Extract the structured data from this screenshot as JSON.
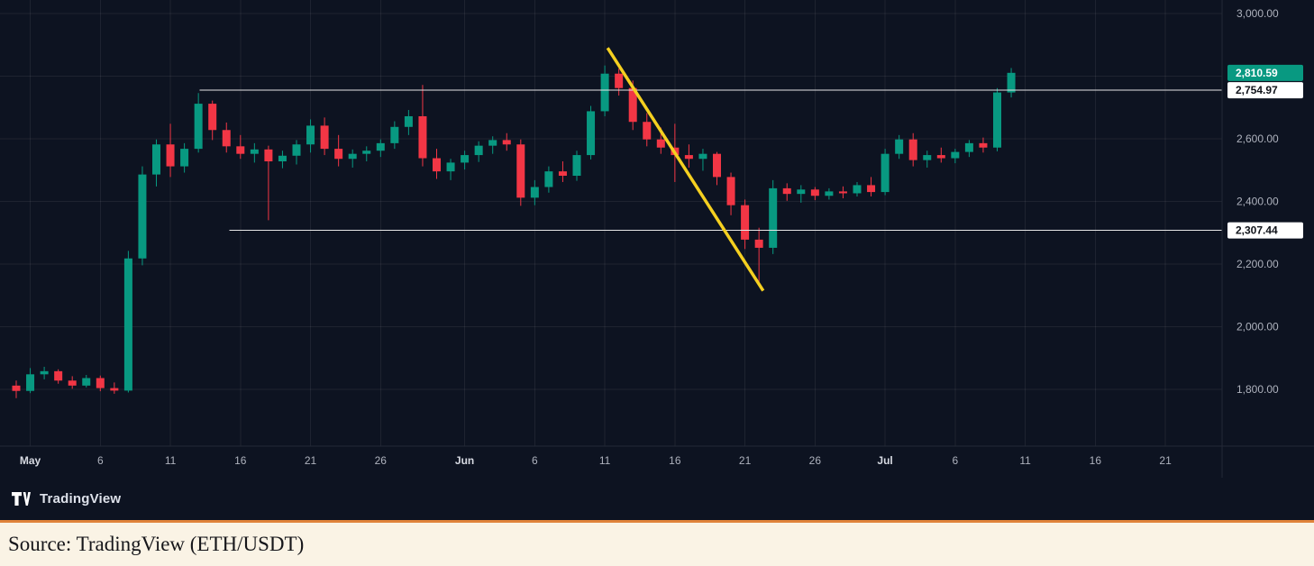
{
  "colors": {
    "background": "#0d1321",
    "up": "#089981",
    "down": "#f23645",
    "grid": "rgba(255,255,255,0.07)",
    "axis_text": "#aeb2bd",
    "axis_text_major": "#d7dae2",
    "separator": "#232836",
    "level_line": "#e6e6e6",
    "trend_yellow": "#f5d020",
    "badge_last_bg": "#089981",
    "badge_last_text": "#ffffff",
    "badge_level_bg": "#ffffff",
    "badge_level_text": "#10131a",
    "footer_bg": "#faf3e5",
    "footer_border": "#e0833a",
    "footer_text": "#16161a"
  },
  "watermark": {
    "brand": "TradingView"
  },
  "footer": {
    "source_text": "Source: TradingView (ETH/USDT)"
  },
  "chart_data": {
    "type": "candlestick",
    "symbol": "ETH/USDT",
    "interval": "1D",
    "grid": true,
    "visible_price_range": [
      1620,
      3043
    ],
    "columns": [
      "date",
      "open",
      "high",
      "low",
      "close"
    ],
    "price_axis": [
      {
        "label": "3,000.00",
        "value": 3000
      },
      {
        "label": "2,600.00",
        "value": 2600
      },
      {
        "label": "2,400.00",
        "value": 2400
      },
      {
        "label": "2,200.00",
        "value": 2200
      },
      {
        "label": "2,000.00",
        "value": 2000
      },
      {
        "label": "1,800.00",
        "value": 1800
      }
    ],
    "grid_prices": [
      3000,
      2800,
      2600,
      2400,
      2200,
      2000,
      1800
    ],
    "time_ticks": [
      {
        "label": "May",
        "day": 1,
        "major": true
      },
      {
        "label": "6",
        "day": 6,
        "major": false
      },
      {
        "label": "11",
        "day": 11,
        "major": false
      },
      {
        "label": "16",
        "day": 16,
        "major": false
      },
      {
        "label": "21",
        "day": 21,
        "major": false
      },
      {
        "label": "26",
        "day": 26,
        "major": false
      },
      {
        "label": "Jun",
        "day": 32,
        "major": true
      },
      {
        "label": "6",
        "day": 37,
        "major": false
      },
      {
        "label": "11",
        "day": 42,
        "major": false
      },
      {
        "label": "16",
        "day": 47,
        "major": false
      },
      {
        "label": "21",
        "day": 52,
        "major": false
      },
      {
        "label": "26",
        "day": 57,
        "major": false
      },
      {
        "label": "Jul",
        "day": 62,
        "major": true
      },
      {
        "label": "6",
        "day": 67,
        "major": false
      },
      {
        "label": "11",
        "day": 72,
        "major": false
      },
      {
        "label": "16",
        "day": 77,
        "major": false
      },
      {
        "label": "21",
        "day": 82,
        "major": false
      }
    ],
    "last_price_badge": {
      "label": "2,810.59",
      "value": 2810.59
    },
    "level_badges": [
      {
        "label": "2,754.97",
        "value": 2754.97
      },
      {
        "label": "2,307.44",
        "value": 2307.44
      }
    ],
    "horizontal_lines": [
      {
        "price": 2754.97,
        "start_day": 13.1
      },
      {
        "price": 2307.44,
        "start_day": 15.2
      }
    ],
    "trend_line": {
      "from_day": 42.2,
      "from_price": 2890,
      "to_day": 53.3,
      "to_price": 2115
    },
    "candles": [
      [
        "Apr 30",
        1812,
        1828,
        1772,
        1795
      ],
      [
        "May 1",
        1795,
        1868,
        1788,
        1848
      ],
      [
        "May 2",
        1848,
        1872,
        1832,
        1858
      ],
      [
        "May 3",
        1858,
        1864,
        1818,
        1828
      ],
      [
        "May 4",
        1828,
        1842,
        1802,
        1812
      ],
      [
        "May 5",
        1812,
        1846,
        1806,
        1836
      ],
      [
        "May 6",
        1836,
        1844,
        1794,
        1804
      ],
      [
        "May 7",
        1804,
        1822,
        1786,
        1796
      ],
      [
        "May 8",
        1796,
        2242,
        1790,
        2218
      ],
      [
        "May 9",
        2218,
        2512,
        2196,
        2486
      ],
      [
        "May 10",
        2486,
        2598,
        2448,
        2582
      ],
      [
        "May 11",
        2582,
        2648,
        2478,
        2512
      ],
      [
        "May 12",
        2512,
        2586,
        2492,
        2568
      ],
      [
        "May 13",
        2568,
        2746,
        2556,
        2712
      ],
      [
        "May 14",
        2712,
        2722,
        2596,
        2628
      ],
      [
        "May 15",
        2628,
        2652,
        2556,
        2576
      ],
      [
        "May 16",
        2576,
        2612,
        2536,
        2552
      ],
      [
        "May 17",
        2552,
        2586,
        2524,
        2566
      ],
      [
        "May 18",
        2566,
        2578,
        2340,
        2528
      ],
      [
        "May 19",
        2528,
        2562,
        2506,
        2546
      ],
      [
        "May 20",
        2546,
        2596,
        2518,
        2582
      ],
      [
        "May 21",
        2582,
        2662,
        2556,
        2642
      ],
      [
        "May 22",
        2642,
        2668,
        2548,
        2568
      ],
      [
        "May 23",
        2568,
        2612,
        2512,
        2536
      ],
      [
        "May 24",
        2536,
        2566,
        2508,
        2552
      ],
      [
        "May 25",
        2552,
        2576,
        2528,
        2562
      ],
      [
        "May 26",
        2562,
        2598,
        2542,
        2586
      ],
      [
        "May 27",
        2586,
        2656,
        2568,
        2638
      ],
      [
        "May 28",
        2638,
        2692,
        2612,
        2672
      ],
      [
        "May 29",
        2672,
        2772,
        2512,
        2538
      ],
      [
        "May 30",
        2538,
        2568,
        2472,
        2496
      ],
      [
        "May 31",
        2496,
        2536,
        2468,
        2524
      ],
      [
        "Jun 1",
        2524,
        2562,
        2502,
        2548
      ],
      [
        "Jun 2",
        2548,
        2592,
        2526,
        2578
      ],
      [
        "Jun 3",
        2578,
        2608,
        2552,
        2596
      ],
      [
        "Jun 4",
        2596,
        2618,
        2562,
        2582
      ],
      [
        "Jun 5",
        2582,
        2598,
        2386,
        2412
      ],
      [
        "Jun 6",
        2412,
        2468,
        2388,
        2446
      ],
      [
        "Jun 7",
        2446,
        2512,
        2428,
        2496
      ],
      [
        "Jun 8",
        2496,
        2528,
        2462,
        2482
      ],
      [
        "Jun 9",
        2482,
        2562,
        2466,
        2548
      ],
      [
        "Jun 10",
        2548,
        2705,
        2534,
        2688
      ],
      [
        "Jun 11",
        2688,
        2834,
        2672,
        2808
      ],
      [
        "Jun 12",
        2808,
        2824,
        2738,
        2762
      ],
      [
        "Jun 13",
        2762,
        2786,
        2628,
        2654
      ],
      [
        "Jun 14",
        2654,
        2682,
        2576,
        2598
      ],
      [
        "Jun 15",
        2598,
        2636,
        2552,
        2572
      ],
      [
        "Jun 16",
        2572,
        2648,
        2462,
        2548
      ],
      [
        "Jun 17",
        2548,
        2582,
        2508,
        2536
      ],
      [
        "Jun 18",
        2536,
        2568,
        2498,
        2552
      ],
      [
        "Jun 19",
        2552,
        2558,
        2452,
        2478
      ],
      [
        "Jun 20",
        2478,
        2492,
        2356,
        2388
      ],
      [
        "Jun 21",
        2388,
        2406,
        2248,
        2278
      ],
      [
        "Jun 22",
        2278,
        2316,
        2142,
        2252
      ],
      [
        "Jun 23",
        2252,
        2468,
        2232,
        2442
      ],
      [
        "Jun 24",
        2442,
        2458,
        2402,
        2424
      ],
      [
        "Jun 25",
        2424,
        2452,
        2396,
        2438
      ],
      [
        "Jun 26",
        2438,
        2446,
        2404,
        2418
      ],
      [
        "Jun 27",
        2418,
        2442,
        2406,
        2432
      ],
      [
        "Jun 28",
        2432,
        2448,
        2410,
        2426
      ],
      [
        "Jun 29",
        2426,
        2462,
        2416,
        2452
      ],
      [
        "Jun 30",
        2452,
        2478,
        2416,
        2430
      ],
      [
        "Jul 1",
        2430,
        2568,
        2420,
        2552
      ],
      [
        "Jul 2",
        2552,
        2612,
        2536,
        2598
      ],
      [
        "Jul 3",
        2598,
        2618,
        2512,
        2532
      ],
      [
        "Jul 4",
        2532,
        2562,
        2508,
        2548
      ],
      [
        "Jul 5",
        2548,
        2572,
        2524,
        2538
      ],
      [
        "Jul 6",
        2538,
        2568,
        2522,
        2558
      ],
      [
        "Jul 7",
        2558,
        2596,
        2542,
        2586
      ],
      [
        "Jul 8",
        2586,
        2604,
        2556,
        2572
      ],
      [
        "Jul 9",
        2572,
        2762,
        2560,
        2748
      ],
      [
        "Jul 10",
        2748,
        2826,
        2732,
        2810.59
      ]
    ]
  }
}
